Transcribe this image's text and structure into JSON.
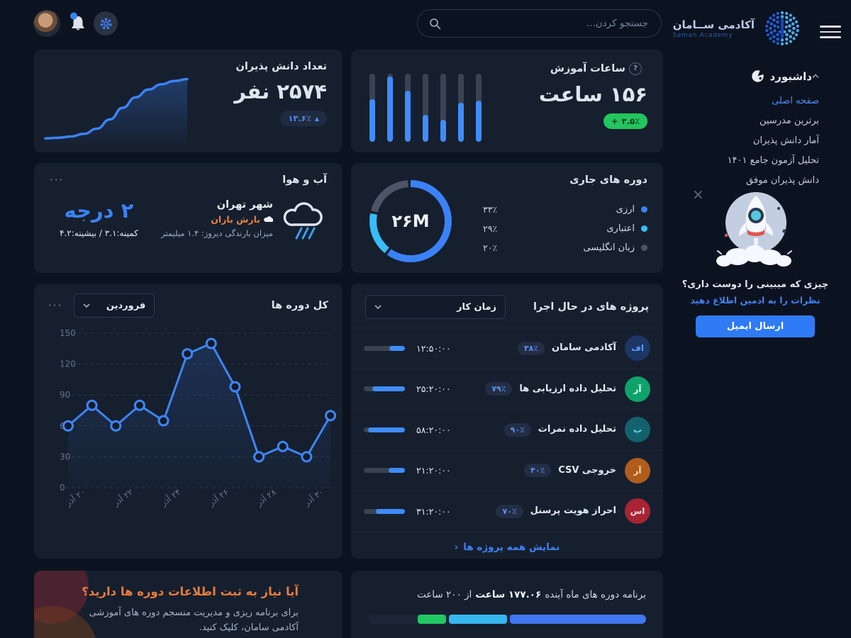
{
  "topbar": {
    "search_placeholder": "جستجو کردن...",
    "icons": [
      "user-avatar",
      "bell-icon",
      "gear-icon",
      "search-icon",
      "hamburger-icon"
    ]
  },
  "logo": {
    "title": "آکادمی ســامان",
    "subtitle": "Saman Academy"
  },
  "menu": {
    "header": "داشبورد",
    "items": [
      {
        "label": "صفحه اصلی",
        "active": true
      },
      {
        "label": "برترین مدرسین",
        "active": false
      },
      {
        "label": "آمار دانش پذیران",
        "active": false
      },
      {
        "label": "تحلیل آزمون جامع ۱۴۰۱",
        "active": false
      },
      {
        "label": "دانش پذیران موفق",
        "active": false
      }
    ]
  },
  "promo": {
    "question": "چیزی که میبینی را دوست داری؟",
    "cta_hint": "نظرات را به ادمین اطلاع دهید",
    "button": "ارسال ایمیل",
    "close": "×"
  },
  "students_card": {
    "title": "تعداد دانش پذیران",
    "value": "۲۵۷۴ نفر",
    "badge_value": "۱۳.۶٪",
    "badge_arrow": "▲"
  },
  "hours_card": {
    "title": "ساعات آموزش",
    "help": "?",
    "value": "۱۵۶ ساعت",
    "badge_prefix": "+",
    "badge_value": "۳.۵٪"
  },
  "weather_card": {
    "title": "آب و هوا",
    "menu": "···",
    "city": "شهر تهران",
    "condition": "بارش باران",
    "precip": "میزان بارندگی دیروز: ۱.۴ میلیمتر",
    "temperature": "۲ درجه",
    "minmax": "کمینه:۳.۱ / بیشینه:۴.۲"
  },
  "donut_card": {
    "title": "دوره های جاری"
  },
  "total_courses_card": {
    "title": "کل دوره ها",
    "menu": "···",
    "dropdown": "فروردین"
  },
  "projects_card": {
    "title": "پروژه های در حال اجرا",
    "dropdown": "زمان کار",
    "show_all": "نمایش همه پروژه ها",
    "show_all_chevron": "‹",
    "rows": [
      {
        "initials": "اف",
        "avatar_bg": "#1c3763",
        "avatar_color": "#5b9bff",
        "name": "آکادمی سامان",
        "percent": "۳۸٪",
        "time": "۱۲:۵۰:۰۰",
        "progress": 38
      },
      {
        "initials": "آر",
        "avatar_bg": "#0fa36b",
        "avatar_color": "#eafff5",
        "name": "تحلیل داده ارزیابی ها",
        "percent": "۷۹٪",
        "time": "۲۵:۲۰:۰۰",
        "progress": 79
      },
      {
        "initials": "ب",
        "avatar_bg": "#14616e",
        "avatar_color": "#5fd6e8",
        "name": "تحلیل داده نمرات",
        "percent": "۹۰٪",
        "time": "۵۸:۲۰:۰۰",
        "progress": 90
      },
      {
        "initials": "آر",
        "avatar_bg": "#b05c1c",
        "avatar_color": "#ffd9b0",
        "name": "خروجی CSV",
        "percent": "۴۰٪",
        "time": "۲۱:۲۰:۰۰",
        "progress": 40
      },
      {
        "initials": "اس",
        "avatar_bg": "#a82432",
        "avatar_color": "#ffd7d7",
        "name": "احراز هویت پرسنل",
        "percent": "۷۰٪",
        "time": "۳۱:۲۰:۰۰",
        "progress": 70
      }
    ]
  },
  "cta_card": {
    "title": "آیا نیاز به ثبت اطلاعات دوره ها دارید؟",
    "description": "برای برنامه ریزی و مدیریت منسجم دوره های آموزشی آکادمی سامان، کلیک کنید."
  },
  "schedule_card": {
    "prefix": "برنامه دوره های ماه آینده",
    "highlight": "۱۷۷.۰۶ ساعت",
    "suffix": "از ۲۰۰ ساعت",
    "segments": [
      {
        "color": "#4076f0",
        "width": 49
      },
      {
        "color": "#36b7f0",
        "width": 21
      },
      {
        "color": "#21c763",
        "width": 10
      }
    ]
  },
  "chart_data": [
    {
      "type": "line",
      "name": "students-trend",
      "title": "تعداد دانش پذیران",
      "values": [
        3,
        4,
        6,
        10,
        18,
        32,
        50,
        66,
        78,
        86,
        91,
        94
      ],
      "note": "normalized 0-100 sparkline, no axes",
      "color": "#3b82f6"
    },
    {
      "type": "bar",
      "name": "teaching-hours",
      "title": "ساعات آموزش",
      "values_pct": [
        62,
        96,
        75,
        40,
        32,
        57,
        60
      ],
      "bar_color": "#3f8cfa",
      "track_color": "#3a4353"
    },
    {
      "type": "pie",
      "name": "current-courses",
      "title": "دوره های جاری",
      "center": "۲۶M",
      "labels": [
        "ارزی",
        "اعتباری",
        "زبان انگلیسی"
      ],
      "values": [
        "۳۳٪",
        "۲۹٪",
        "۲۰٪"
      ],
      "colors": [
        "#3b82f6",
        "#38bdf8",
        "#4b5566"
      ],
      "ring_degrees": [
        [
          0,
          215
        ],
        [
          219,
          281
        ],
        [
          285,
          356
        ]
      ],
      "legend_position": "right"
    },
    {
      "type": "line",
      "name": "total-courses",
      "title": "کل دوره ها",
      "x_labels": [
        "۲۰ آذر",
        "۲۲ آذر",
        "۲۴ آذر",
        "۲۶ آذر",
        "۲۸ آذر",
        "۳۰ آذر"
      ],
      "values": [
        60,
        80,
        60,
        80,
        65,
        130,
        140,
        98,
        30,
        40,
        30,
        70
      ],
      "ylim": [
        0,
        150
      ],
      "yticks": [
        0,
        30,
        60,
        90,
        120,
        150
      ],
      "grid": "dashed",
      "color": "#3f85f5"
    }
  ]
}
